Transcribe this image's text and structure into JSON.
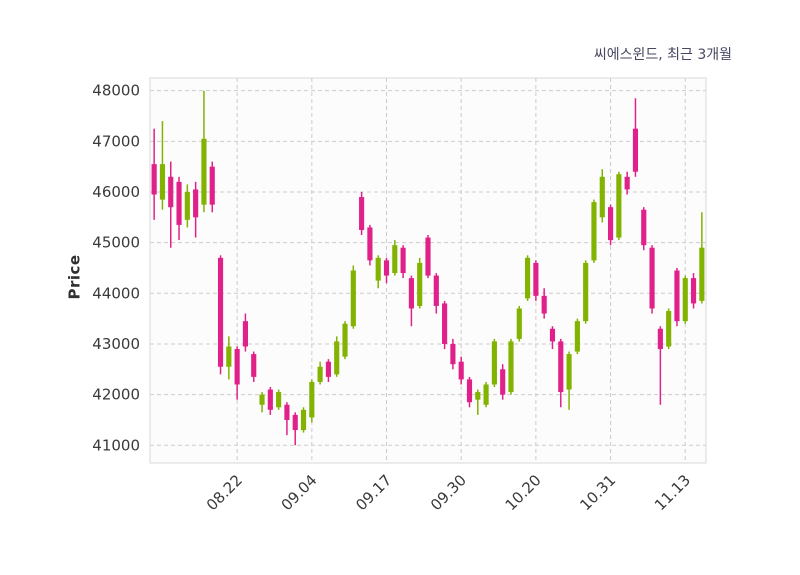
{
  "chart_data": {
    "type": "candlestick",
    "title": "씨에스윈드, 최근 3개월",
    "ylabel": "Price",
    "ylim": [
      40650,
      48250
    ],
    "yticks": [
      41000,
      42000,
      43000,
      44000,
      45000,
      46000,
      47000,
      48000
    ],
    "xtick_indices": [
      10,
      19,
      28,
      37,
      46,
      55,
      64
    ],
    "xtick_labels": [
      "08.22",
      "09.04",
      "09.17",
      "09.30",
      "10.20",
      "10.31",
      "11.13"
    ],
    "up_color": "#82b300",
    "down_color": "#e0218a",
    "grid_color": "#cccccc",
    "plot_bg": "#fcfcfc",
    "border_color": "#d9d9d9",
    "candles": [
      [
        46550,
        47250,
        45450,
        45950
      ],
      [
        45850,
        47400,
        45650,
        46550
      ],
      [
        46300,
        46600,
        44900,
        45700
      ],
      [
        46200,
        46300,
        45050,
        45350
      ],
      [
        45450,
        46150,
        45300,
        46000
      ],
      [
        46050,
        46200,
        45100,
        45500
      ],
      [
        45750,
        48000,
        45600,
        47050
      ],
      [
        46500,
        46600,
        45600,
        45750
      ],
      [
        44700,
        44750,
        42400,
        42550
      ],
      [
        42550,
        43150,
        42300,
        42950
      ],
      [
        42900,
        42950,
        41900,
        42200
      ],
      [
        43450,
        43600,
        42850,
        42950
      ],
      [
        42800,
        42850,
        42250,
        42350
      ],
      [
        41800,
        42050,
        41650,
        42000
      ],
      [
        42100,
        42150,
        41600,
        41700
      ],
      [
        41750,
        42100,
        41700,
        42050
      ],
      [
        41800,
        41850,
        41200,
        41500
      ],
      [
        41600,
        41650,
        41000,
        41300
      ],
      [
        41300,
        41750,
        41250,
        41700
      ],
      [
        41550,
        42300,
        41450,
        42250
      ],
      [
        42250,
        42650,
        42200,
        42550
      ],
      [
        42650,
        42700,
        42250,
        42350
      ],
      [
        42400,
        43150,
        42350,
        43050
      ],
      [
        42750,
        43450,
        42700,
        43400
      ],
      [
        43350,
        44550,
        43300,
        44450
      ],
      [
        45900,
        46000,
        45150,
        45250
      ],
      [
        45300,
        45350,
        44550,
        44650
      ],
      [
        44250,
        44750,
        44100,
        44700
      ],
      [
        44650,
        44700,
        44200,
        44350
      ],
      [
        44400,
        45050,
        44350,
        44950
      ],
      [
        44900,
        44950,
        44300,
        44400
      ],
      [
        44300,
        44350,
        43350,
        43700
      ],
      [
        43750,
        44700,
        43700,
        44600
      ],
      [
        45100,
        45150,
        44300,
        44350
      ],
      [
        44350,
        44400,
        43600,
        43750
      ],
      [
        43800,
        43850,
        42900,
        43000
      ],
      [
        43000,
        43100,
        42500,
        42600
      ],
      [
        42650,
        42750,
        42200,
        42300
      ],
      [
        42300,
        42350,
        41750,
        41850
      ],
      [
        41900,
        42100,
        41600,
        42050
      ],
      [
        41800,
        42250,
        41750,
        42200
      ],
      [
        42200,
        43100,
        42150,
        43050
      ],
      [
        42500,
        42600,
        41900,
        42000
      ],
      [
        42050,
        43100,
        42000,
        43050
      ],
      [
        43100,
        43750,
        43050,
        43700
      ],
      [
        43900,
        44750,
        43850,
        44700
      ],
      [
        44600,
        44650,
        43850,
        43950
      ],
      [
        43950,
        44100,
        43500,
        43600
      ],
      [
        43300,
        43350,
        42900,
        43050
      ],
      [
        43050,
        43100,
        41750,
        42050
      ],
      [
        42100,
        42850,
        41700,
        42800
      ],
      [
        42850,
        43500,
        42800,
        43450
      ],
      [
        43450,
        44650,
        43400,
        44600
      ],
      [
        44650,
        45850,
        44600,
        45800
      ],
      [
        45500,
        46450,
        45400,
        46300
      ],
      [
        45700,
        45750,
        44950,
        45050
      ],
      [
        45100,
        46400,
        45050,
        46350
      ],
      [
        46300,
        46400,
        45950,
        46050
      ],
      [
        47250,
        47850,
        46300,
        46400
      ],
      [
        45650,
        45700,
        44850,
        44950
      ],
      [
        44900,
        44950,
        43600,
        43700
      ],
      [
        43300,
        43350,
        41800,
        42900
      ],
      [
        42950,
        43700,
        42900,
        43650
      ],
      [
        44450,
        44500,
        43350,
        43450
      ],
      [
        43450,
        44350,
        43400,
        44300
      ],
      [
        44300,
        44400,
        43700,
        43800
      ],
      [
        43850,
        45600,
        43800,
        44900
      ]
    ]
  }
}
